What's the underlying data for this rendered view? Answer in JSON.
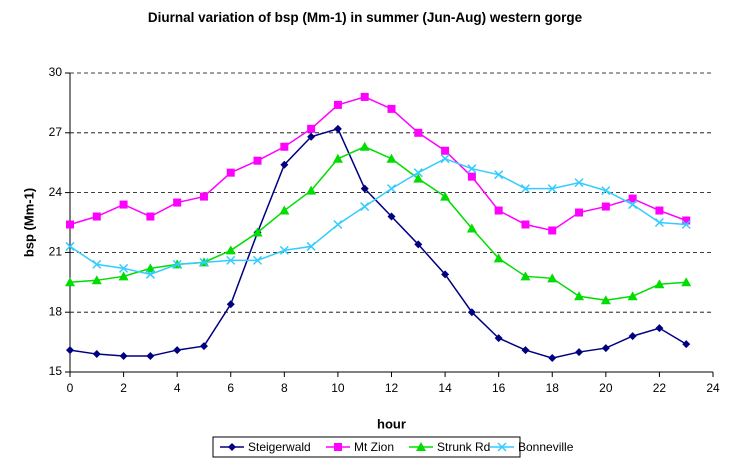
{
  "chart_data": {
    "type": "line",
    "title": "Diurnal variation of bsp (Mm-1) in summer (Jun-Aug) western gorge",
    "x_label": "hour",
    "y_label": "bsp (Mm-1)",
    "x": [
      0,
      1,
      2,
      3,
      4,
      5,
      6,
      7,
      8,
      9,
      10,
      11,
      12,
      13,
      14,
      15,
      16,
      17,
      18,
      19,
      20,
      21,
      22,
      23
    ],
    "series": [
      {
        "name": "Steigerwald",
        "color": "#000080",
        "marker": "diamond",
        "values": [
          16.1,
          15.9,
          15.8,
          15.8,
          16.1,
          16.3,
          18.4,
          22.0,
          25.4,
          26.8,
          27.2,
          24.2,
          22.8,
          21.4,
          19.9,
          18.0,
          16.7,
          16.1,
          15.7,
          16.0,
          16.2,
          16.8,
          17.2,
          16.4
        ]
      },
      {
        "name": "Mt Zion",
        "color": "#ff00ff",
        "marker": "square",
        "values": [
          22.4,
          22.8,
          23.4,
          22.8,
          23.5,
          23.8,
          25.0,
          25.6,
          26.3,
          27.2,
          28.4,
          28.8,
          28.2,
          27.0,
          26.1,
          24.8,
          23.1,
          22.4,
          22.1,
          23.0,
          23.3,
          23.7,
          23.1,
          22.6
        ]
      },
      {
        "name": "Strunk Rd",
        "color": "#00dd00",
        "marker": "triangle",
        "values": [
          19.5,
          19.6,
          19.8,
          20.2,
          20.4,
          20.5,
          21.1,
          22.0,
          23.1,
          24.1,
          25.7,
          26.3,
          25.7,
          24.7,
          23.8,
          22.2,
          20.7,
          19.8,
          19.7,
          18.8,
          18.6,
          18.8,
          19.4,
          19.5
        ]
      },
      {
        "name": "Bonneville",
        "color": "#33ccff",
        "marker": "x",
        "values": [
          21.3,
          20.4,
          20.2,
          19.9,
          20.4,
          20.5,
          20.6,
          20.6,
          21.1,
          21.3,
          22.4,
          23.3,
          24.2,
          25.0,
          25.7,
          25.2,
          24.9,
          24.2,
          24.2,
          24.5,
          24.1,
          23.4,
          22.5,
          22.4
        ]
      }
    ],
    "xlim": [
      0,
      24
    ],
    "xticks": [
      0,
      2,
      4,
      6,
      8,
      10,
      12,
      14,
      16,
      18,
      20,
      22,
      24
    ],
    "ylim": [
      15,
      30
    ],
    "yticks": [
      15,
      18,
      21,
      24,
      27,
      30
    ],
    "grid": true,
    "legend": "bottom"
  }
}
